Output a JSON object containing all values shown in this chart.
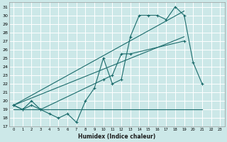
{
  "xlabel": "Humidex (Indice chaleur)",
  "background_color": "#cce8e8",
  "grid_color": "#ffffff",
  "line_color": "#1a6b6b",
  "xlim": [
    -0.5,
    23.5
  ],
  "ylim": [
    17,
    31.5
  ],
  "yticks": [
    17,
    18,
    19,
    20,
    21,
    22,
    23,
    24,
    25,
    26,
    27,
    28,
    29,
    30,
    31
  ],
  "xticks": [
    0,
    1,
    2,
    3,
    4,
    5,
    6,
    7,
    8,
    9,
    10,
    11,
    12,
    13,
    14,
    15,
    16,
    17,
    18,
    19,
    20,
    21,
    22,
    23
  ],
  "series1_x": [
    0,
    1,
    2,
    3,
    4,
    5,
    6,
    7,
    8,
    9,
    10,
    11,
    12,
    13,
    14,
    15,
    16,
    17,
    18,
    19,
    20,
    21
  ],
  "series1_y": [
    19.5,
    19.0,
    19.5,
    19.0,
    18.5,
    18.0,
    18.5,
    17.5,
    20.0,
    21.5,
    25.0,
    22.0,
    22.5,
    27.5,
    30.0,
    30.0,
    30.0,
    29.5,
    31.0,
    30.0,
    24.5,
    22.0
  ],
  "series2_x": [
    0,
    1,
    2,
    3,
    10,
    11,
    12,
    13,
    19
  ],
  "series2_y": [
    19.5,
    19.0,
    20.0,
    19.0,
    22.5,
    23.0,
    25.5,
    25.5,
    27.0
  ],
  "series3_x": [
    0,
    21
  ],
  "series3_y": [
    19.0,
    19.0
  ],
  "trend1_x": [
    0,
    19
  ],
  "trend1_y": [
    19.5,
    30.5
  ],
  "trend2_x": [
    0,
    19
  ],
  "trend2_y": [
    19.5,
    27.5
  ]
}
